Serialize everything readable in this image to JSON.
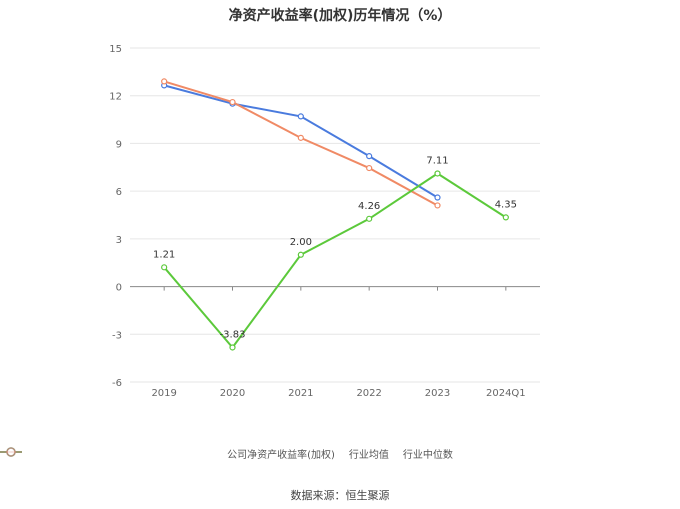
{
  "chart_data": {
    "type": "line",
    "title": "净资产收益率(加权)历年情况（%）",
    "categories": [
      "2019",
      "2020",
      "2021",
      "2022",
      "2023",
      "2024Q1"
    ],
    "yticks": [
      15,
      12,
      9,
      6,
      3,
      0,
      -3,
      -6
    ],
    "ylim": [
      -6,
      15
    ],
    "grid": true,
    "legend_position": "bottom",
    "series": [
      {
        "name": "公司净资产收益率(加权)",
        "color": "#5cc93b",
        "values": [
          1.21,
          -3.83,
          2.0,
          4.26,
          7.11,
          4.35
        ],
        "labels": [
          "1.21",
          "-3.83",
          "2.00",
          "4.26",
          "7.11",
          "4.35"
        ]
      },
      {
        "name": "行业均值",
        "color": "#4a7bde",
        "values": [
          12.65,
          11.5,
          10.7,
          8.2,
          5.6,
          null
        ]
      },
      {
        "name": "行业中位数",
        "color": "#f08a65",
        "values": [
          12.9,
          11.6,
          9.35,
          7.45,
          5.1,
          null
        ]
      }
    ]
  },
  "source": "数据来源：恒生聚源"
}
